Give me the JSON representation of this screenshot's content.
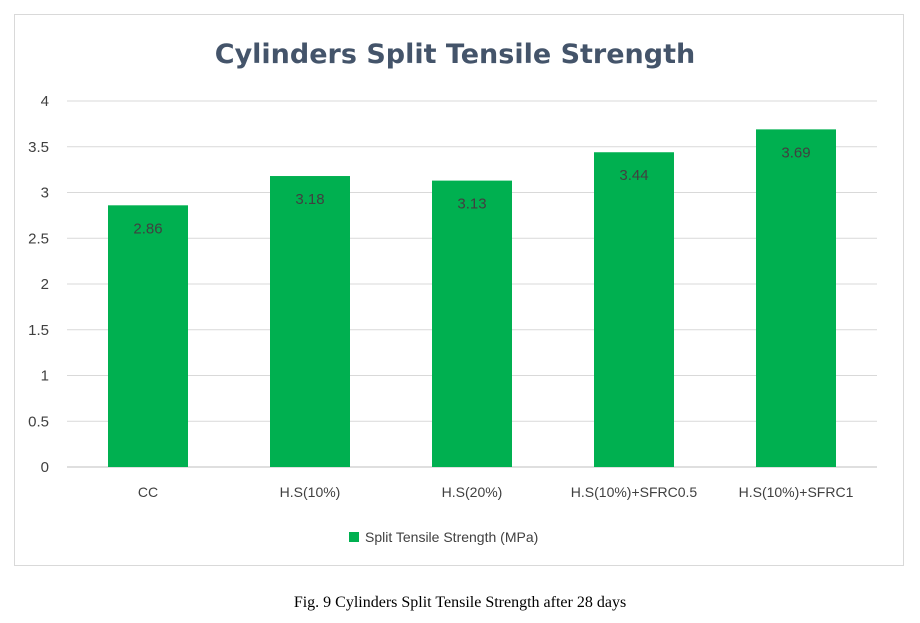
{
  "chart_data": {
    "type": "bar",
    "title": "Cylinders Split Tensile Strength",
    "categories": [
      "CC",
      "H.S(10%)",
      "H.S(20%)",
      "H.S(10%)+SFRC0.5",
      "H.S(10%)+SFRC1"
    ],
    "series": [
      {
        "name": "Split Tensile Strength (MPa)",
        "values": [
          2.86,
          3.18,
          3.13,
          3.44,
          3.69
        ],
        "data_labels": [
          "2.86",
          "3.18",
          "3.13",
          "3.44",
          "3.69"
        ],
        "color": "#00b050"
      }
    ],
    "xlabel": "",
    "ylabel": "",
    "ylim": [
      0,
      4
    ],
    "y_ticks": [
      0,
      0.5,
      1,
      1.5,
      2,
      2.5,
      3,
      3.5,
      4
    ],
    "y_tick_labels": [
      "0",
      "0.5",
      "1",
      "1.5",
      "2",
      "2.5",
      "3",
      "3.5",
      "4"
    ],
    "grid": true,
    "legend": "bottom"
  },
  "caption": "Fig. 9 Cylinders Split Tensile Strength after 28 days"
}
